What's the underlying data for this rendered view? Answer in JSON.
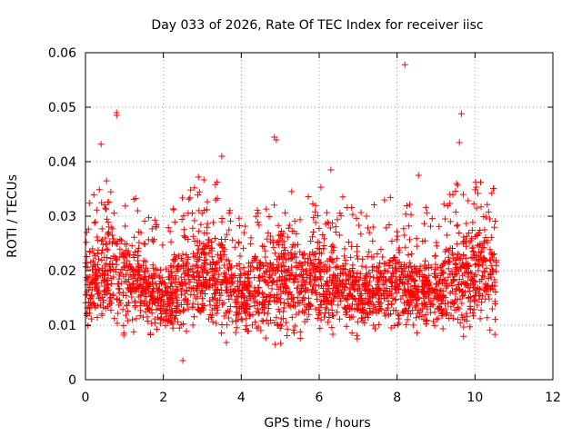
{
  "chart_data": {
    "type": "scatter",
    "title": "Day 033 of 2026, Rate Of TEC Index for receiver iisc",
    "xlabel": "GPS time / hours",
    "ylabel": "ROTI / TECUs",
    "xlim": [
      0,
      12
    ],
    "ylim": [
      0,
      0.06
    ],
    "x_ticks": [
      "0",
      "2",
      "4",
      "6",
      "8",
      "10",
      "12"
    ],
    "y_ticks": [
      "0",
      "0.01",
      "0.02",
      "0.03",
      "0.04",
      "0.05",
      "0.06"
    ],
    "x_tick_values": [
      0,
      2,
      4,
      6,
      8,
      10,
      12
    ],
    "y_tick_values": [
      0,
      0.01,
      0.02,
      0.03,
      0.04,
      0.05,
      0.06
    ],
    "grid": true,
    "marker": "+",
    "series_color": "#ff0000",
    "x_data_max": 10.55,
    "noted_points": [
      {
        "x": 0.8,
        "y": 0.049
      },
      {
        "x": 0.8,
        "y": 0.0485
      },
      {
        "x": 0.4,
        "y": 0.0432
      },
      {
        "x": 3.5,
        "y": 0.041
      },
      {
        "x": 4.85,
        "y": 0.0445
      },
      {
        "x": 4.9,
        "y": 0.044
      },
      {
        "x": 8.2,
        "y": 0.0578
      },
      {
        "x": 9.65,
        "y": 0.0488
      },
      {
        "x": 9.6,
        "y": 0.0435
      },
      {
        "x": 6.3,
        "y": 0.0385
      },
      {
        "x": 8.55,
        "y": 0.0375
      },
      {
        "x": 2.5,
        "y": 0.0035
      }
    ],
    "envelope": [
      {
        "x": 0.0,
        "lo": 0.006,
        "hi": 0.024
      },
      {
        "x": 0.5,
        "lo": 0.006,
        "hi": 0.03
      },
      {
        "x": 1.0,
        "lo": 0.005,
        "hi": 0.028
      },
      {
        "x": 1.5,
        "lo": 0.006,
        "hi": 0.024
      },
      {
        "x": 2.0,
        "lo": 0.006,
        "hi": 0.022
      },
      {
        "x": 2.5,
        "lo": 0.006,
        "hi": 0.026
      },
      {
        "x": 3.0,
        "lo": 0.006,
        "hi": 0.03
      },
      {
        "x": 3.5,
        "lo": 0.006,
        "hi": 0.028
      },
      {
        "x": 4.0,
        "lo": 0.006,
        "hi": 0.022
      },
      {
        "x": 4.5,
        "lo": 0.006,
        "hi": 0.026
      },
      {
        "x": 5.0,
        "lo": 0.004,
        "hi": 0.03
      },
      {
        "x": 5.5,
        "lo": 0.006,
        "hi": 0.026
      },
      {
        "x": 6.0,
        "lo": 0.006,
        "hi": 0.028
      },
      {
        "x": 6.5,
        "lo": 0.006,
        "hi": 0.026
      },
      {
        "x": 7.0,
        "lo": 0.006,
        "hi": 0.024
      },
      {
        "x": 7.5,
        "lo": 0.006,
        "hi": 0.025
      },
      {
        "x": 8.0,
        "lo": 0.006,
        "hi": 0.026
      },
      {
        "x": 8.5,
        "lo": 0.006,
        "hi": 0.024
      },
      {
        "x": 9.0,
        "lo": 0.006,
        "hi": 0.024
      },
      {
        "x": 9.5,
        "lo": 0.006,
        "hi": 0.028
      },
      {
        "x": 10.0,
        "lo": 0.006,
        "hi": 0.03
      },
      {
        "x": 10.5,
        "lo": 0.006,
        "hi": 0.028
      }
    ]
  }
}
